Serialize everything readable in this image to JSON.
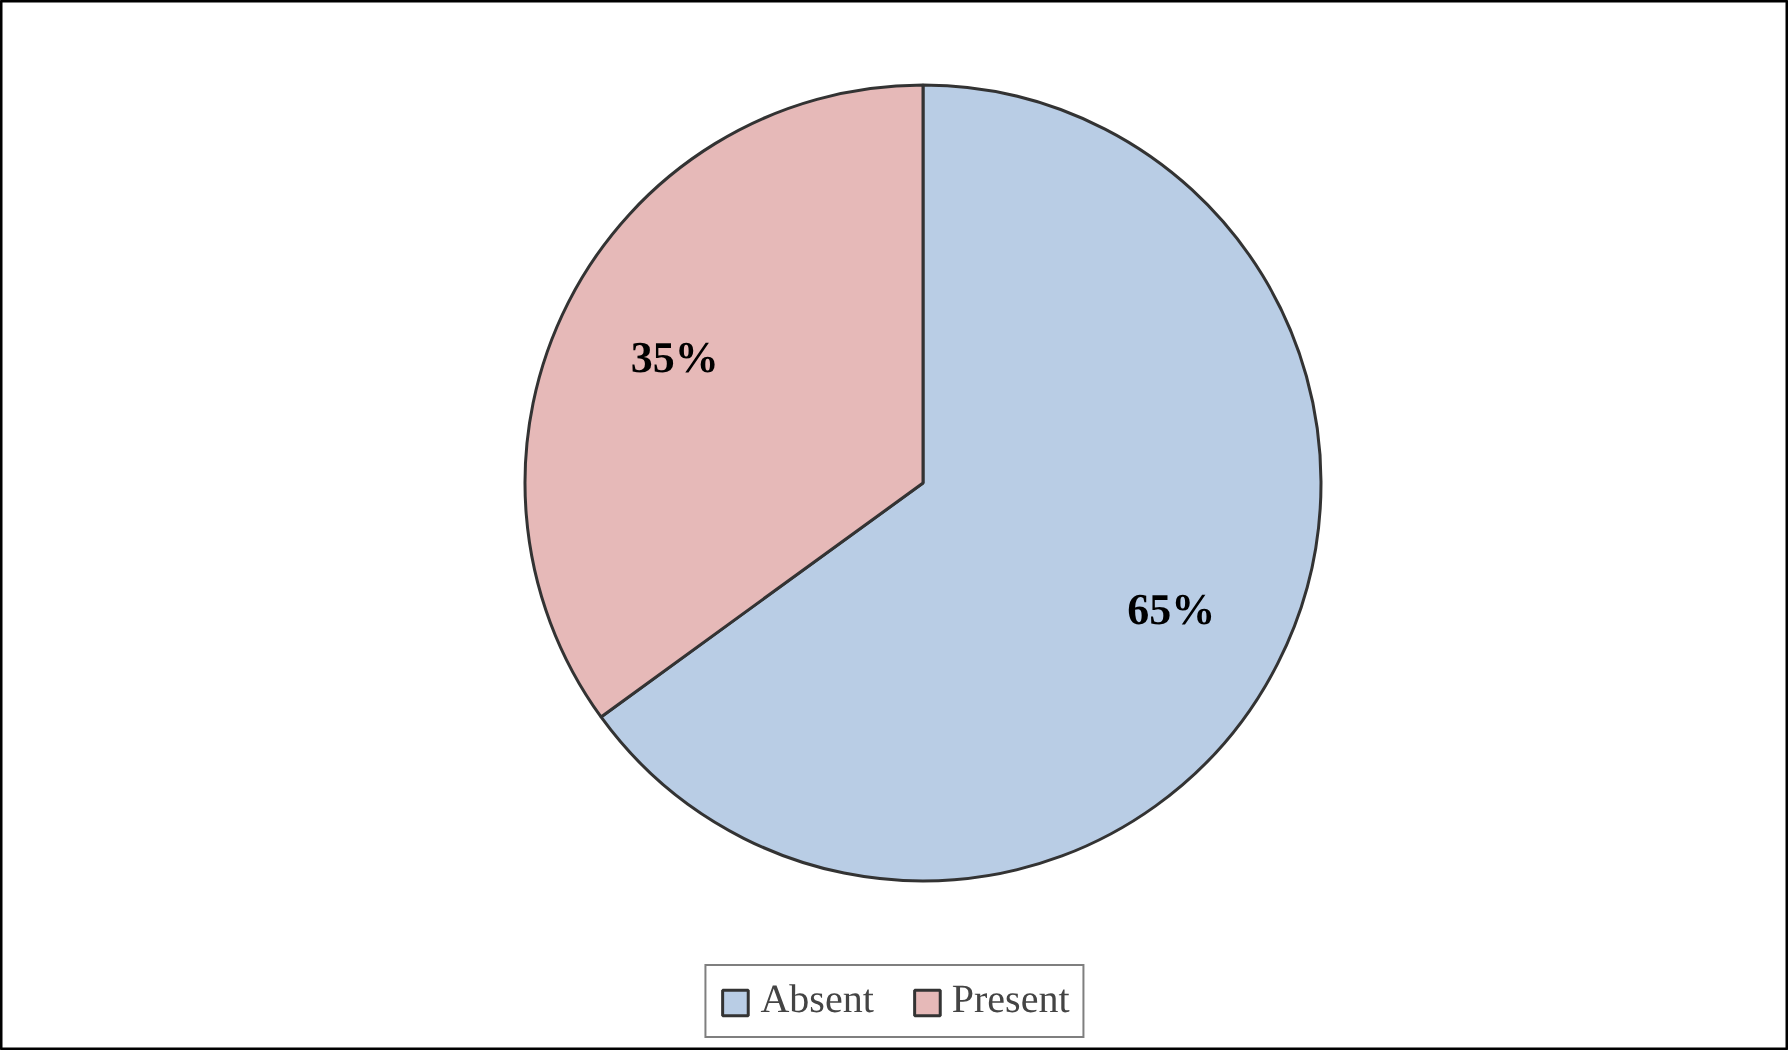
{
  "chart_data": {
    "type": "pie",
    "categories": [
      "Absent",
      "Present"
    ],
    "values": [
      65,
      35
    ],
    "colors": [
      "#b9cde5",
      "#e6b9b8"
    ],
    "value_labels": [
      "65%",
      "35%"
    ],
    "legend": "bottom"
  }
}
